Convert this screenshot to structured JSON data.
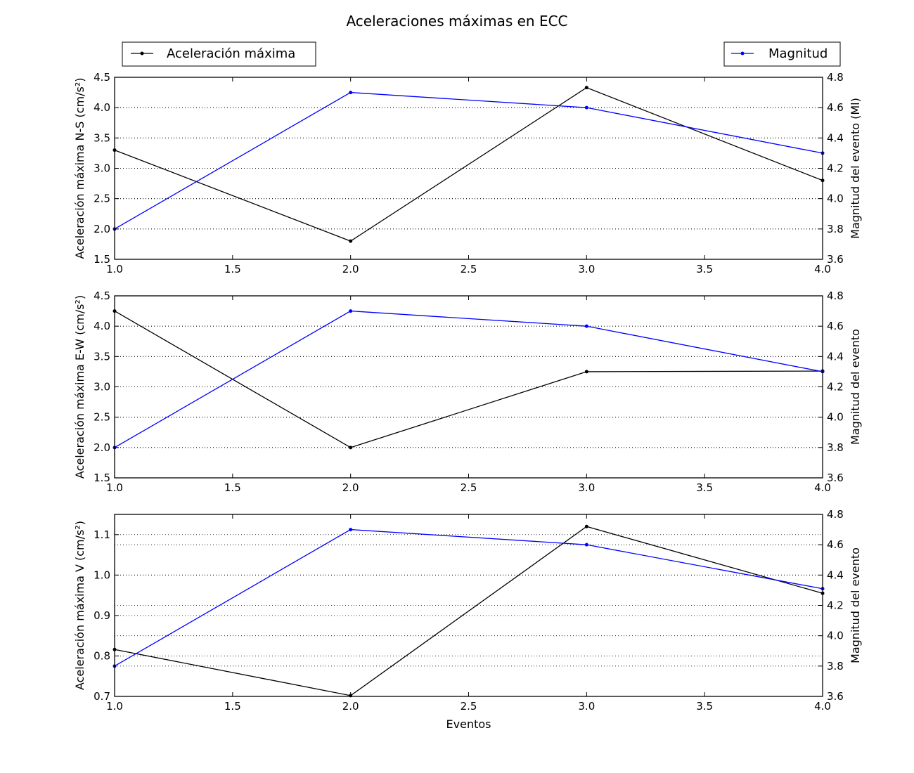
{
  "title": "Aceleraciones máximas en ECC",
  "legend": {
    "left": {
      "label": "Aceleración máxima",
      "color": "#000000"
    },
    "right": {
      "label": "Magnitud",
      "color": "#0000ff"
    }
  },
  "chart_data": [
    {
      "type": "line",
      "x": [
        1.0,
        2.0,
        3.0,
        4.0
      ],
      "xlim": [
        1.0,
        4.0
      ],
      "xticks": [
        "1.0",
        "1.5",
        "2.0",
        "2.5",
        "3.0",
        "3.5",
        "4.0"
      ],
      "xlabel": "",
      "ylabel_left": "Aceleración máxima N-S (cm/s²)",
      "ylim_left": [
        1.5,
        4.5
      ],
      "yticks_left": [
        "1.5",
        "2.0",
        "2.5",
        "3.0",
        "3.5",
        "4.0",
        "4.5"
      ],
      "ylabel_right": "Magnitud del evento (Ml)",
      "ylim_right": [
        3.6,
        4.8
      ],
      "yticks_right": [
        "3.6",
        "3.8",
        "4.0",
        "4.2",
        "4.4",
        "4.6",
        "4.8"
      ],
      "grid": "horizontal dotted",
      "series": [
        {
          "name": "Aceleración máxima",
          "axis": "left",
          "color": "#000000",
          "values": [
            3.3,
            1.8,
            4.33,
            2.8
          ]
        },
        {
          "name": "Magnitud",
          "axis": "right",
          "color": "#0000ff",
          "values": [
            3.8,
            4.7,
            4.6,
            4.3
          ]
        }
      ]
    },
    {
      "type": "line",
      "x": [
        1.0,
        2.0,
        3.0,
        4.0
      ],
      "xlim": [
        1.0,
        4.0
      ],
      "xticks": [
        "1.0",
        "1.5",
        "2.0",
        "2.5",
        "3.0",
        "3.5",
        "4.0"
      ],
      "xlabel": "",
      "ylabel_left": "Aceleración máxima E-W (cm/s²)",
      "ylim_left": [
        1.5,
        4.5
      ],
      "yticks_left": [
        "1.5",
        "2.0",
        "2.5",
        "3.0",
        "3.5",
        "4.0",
        "4.5"
      ],
      "ylabel_right": "Magnitud del evento",
      "ylim_right": [
        3.6,
        4.8
      ],
      "yticks_right": [
        "3.6",
        "3.8",
        "4.0",
        "4.2",
        "4.4",
        "4.6",
        "4.8"
      ],
      "grid": "horizontal dotted",
      "series": [
        {
          "name": "Aceleración máxima",
          "axis": "left",
          "color": "#000000",
          "values": [
            4.25,
            2.0,
            3.25,
            3.26
          ]
        },
        {
          "name": "Magnitud",
          "axis": "right",
          "color": "#0000ff",
          "values": [
            3.8,
            4.7,
            4.6,
            4.3
          ]
        }
      ]
    },
    {
      "type": "line",
      "x": [
        1.0,
        2.0,
        3.0,
        4.0
      ],
      "xlim": [
        1.0,
        4.0
      ],
      "xticks": [
        "1.0",
        "1.5",
        "2.0",
        "2.5",
        "3.0",
        "3.5",
        "4.0"
      ],
      "xlabel": "Eventos",
      "ylabel_left": "Aceleración máxima V (cm/s²)",
      "ylim_left": [
        0.7,
        1.15
      ],
      "yticks_left": [
        "0.7",
        "0.8",
        "0.9",
        "1.0",
        "1.1"
      ],
      "ylabel_right": "Magnitud del evento",
      "ylim_right": [
        3.6,
        4.8
      ],
      "yticks_right": [
        "3.6",
        "3.8",
        "4.0",
        "4.2",
        "4.4",
        "4.6",
        "4.8"
      ],
      "grid": "horizontal dotted",
      "series": [
        {
          "name": "Aceleración máxima",
          "axis": "left",
          "color": "#000000",
          "values": [
            0.816,
            0.702,
            1.12,
            0.955
          ]
        },
        {
          "name": "Magnitud",
          "axis": "right",
          "color": "#0000ff",
          "values": [
            3.8,
            4.7,
            4.6,
            4.31
          ]
        }
      ]
    }
  ]
}
